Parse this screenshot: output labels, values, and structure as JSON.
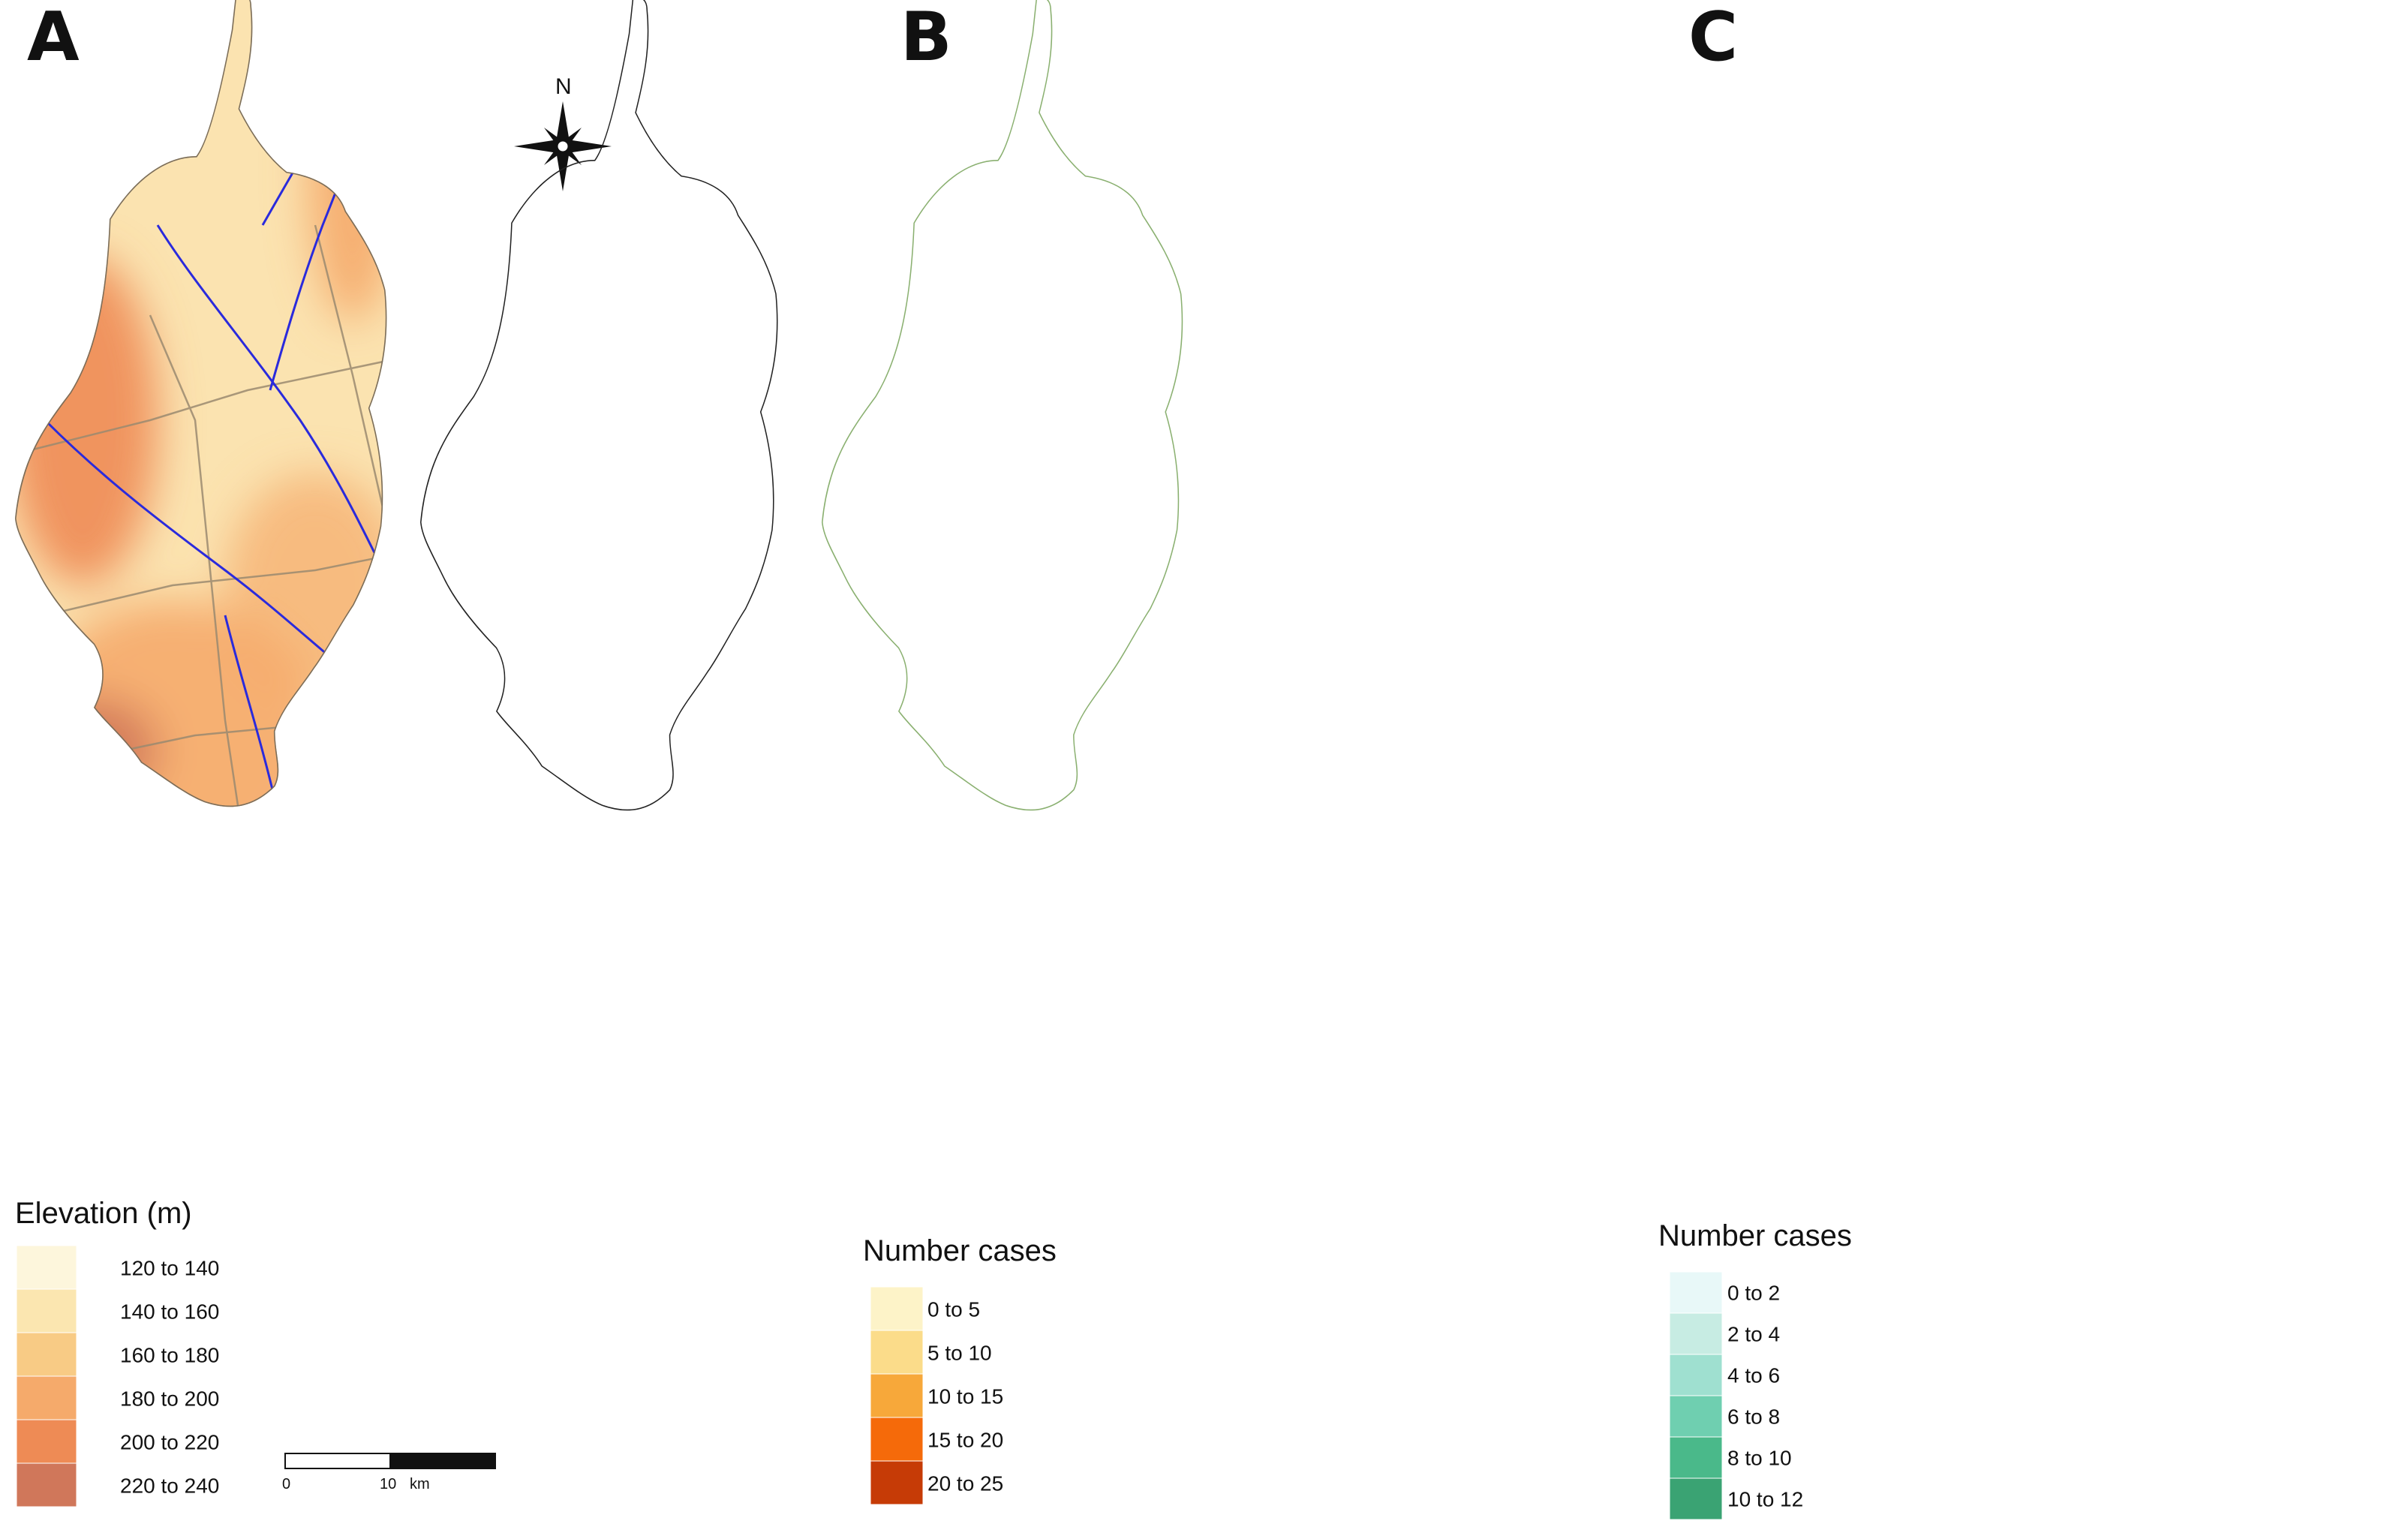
{
  "panels": [
    {
      "letter": "A",
      "legend": {
        "title": "Elevation (m)",
        "items": [
          {
            "label": "120 to 140",
            "color": "#fdf6dc"
          },
          {
            "label": "140 to 160",
            "color": "#fbe6b0"
          },
          {
            "label": "160 to 180",
            "color": "#f8cb85"
          },
          {
            "label": "180 to 200",
            "color": "#f5aa6b"
          },
          {
            "label": "200 to 220",
            "color": "#ee8b55"
          },
          {
            "label": "220 to 240",
            "color": "#d0775a"
          }
        ]
      },
      "scale_bar": {
        "start": "0",
        "mid": "10",
        "unit": "km"
      },
      "north_label": "N",
      "river_color": "#2a2adc"
    },
    {
      "letter": "B",
      "legend": {
        "title": "Number cases",
        "items": [
          {
            "label": "0 to 5",
            "color": "#fdf3c8"
          },
          {
            "label": "5 to 10",
            "color": "#fbdc8a"
          },
          {
            "label": "10 to 15",
            "color": "#f7a83a"
          },
          {
            "label": "15 to 20",
            "color": "#f56a0a"
          },
          {
            "label": "20 to 25",
            "color": "#c63b06"
          }
        ]
      }
    },
    {
      "letter": "C",
      "legend": {
        "title": "Number cases",
        "items": [
          {
            "label": "0 to 2",
            "color": "#e8f8f8"
          },
          {
            "label": "2 to 4",
            "color": "#c7ece3"
          },
          {
            "label": "4 to 6",
            "color": "#9fe0d0"
          },
          {
            "label": "6 to 8",
            "color": "#6fcfb0"
          },
          {
            "label": "8 to 10",
            "color": "#4ab98a"
          },
          {
            "label": "10 to 12",
            "color": "#3aa373"
          }
        ]
      }
    }
  ]
}
